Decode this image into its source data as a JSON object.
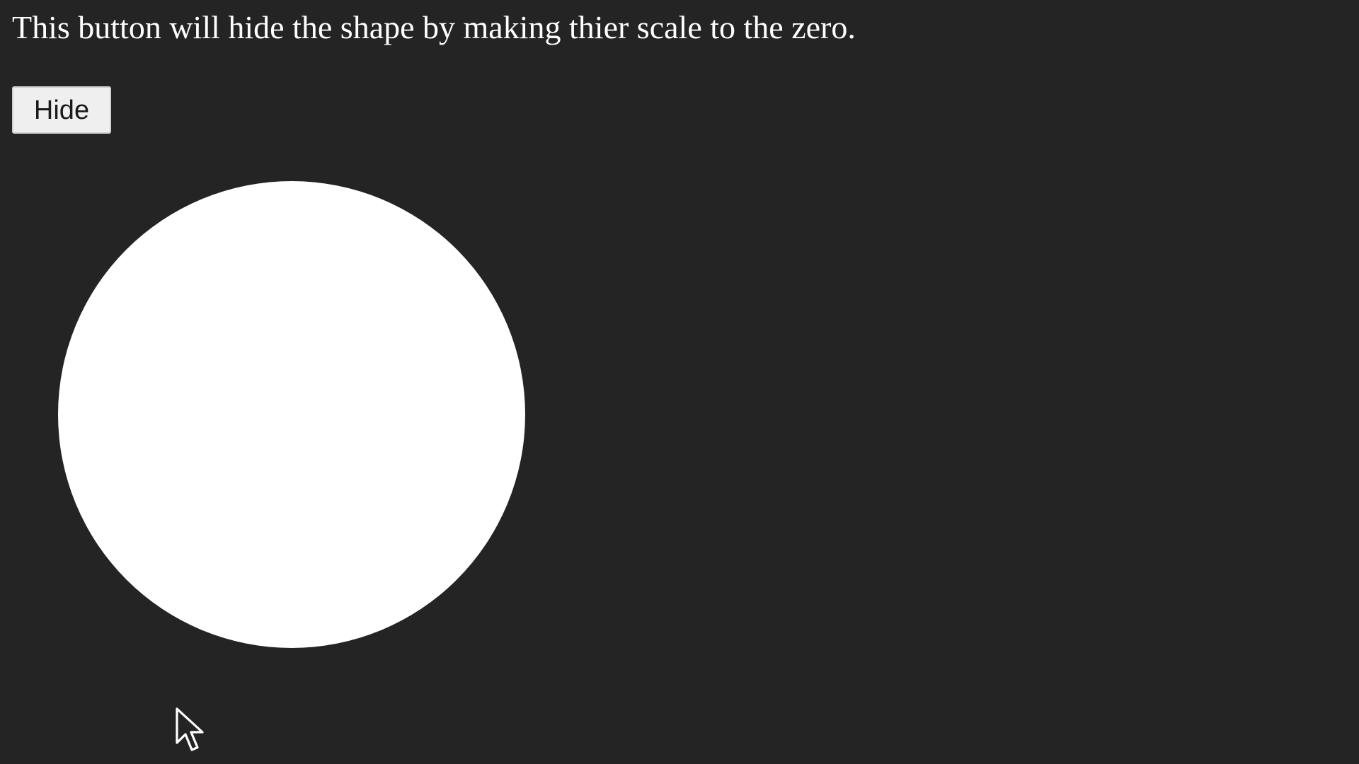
{
  "description": {
    "text": "This button will hide the shape by making thier scale to the zero."
  },
  "controls": {
    "hide_label": "Hide"
  },
  "shape": {
    "type": "circle",
    "fill": "#ffffff"
  },
  "theme": {
    "background": "#242424",
    "text_color": "#ffffff"
  },
  "pointer": {
    "icon": "arrow-cursor-icon"
  }
}
